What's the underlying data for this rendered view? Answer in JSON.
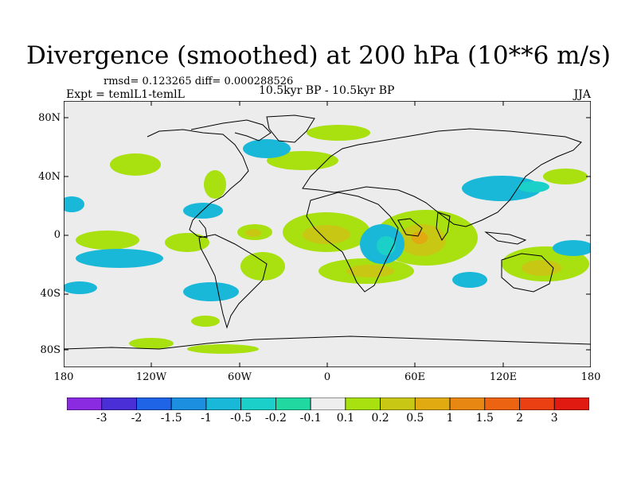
{
  "title": "Divergence (smoothed) at 200 hPa (10**6 m/s)",
  "stats": "rmsd= 0.123265 diff= 0.000288526",
  "experiment": "Expt = temlL1-temlL",
  "period": "10.5kyr BP - 10.5kyr BP",
  "season": "JJA",
  "y_axis_labels": [
    "80N",
    "40N",
    "0",
    "40S",
    "80S"
  ],
  "x_axis_labels": [
    "180",
    "120W",
    "60W",
    "0",
    "60E",
    "120E",
    "180"
  ],
  "colorbar": {
    "labels": [
      "-3",
      "-2",
      "-1.5",
      "-1",
      "-0.5",
      "-0.2",
      "-0.1",
      "0.1",
      "0.2",
      "0.5",
      "1",
      "1.5",
      "2",
      "3"
    ],
    "colors": [
      "#8a2be2",
      "#4b2fd6",
      "#1f63e6",
      "#1c8fe0",
      "#19b8d9",
      "#1ad0c8",
      "#20d8a0",
      "#eeeeee",
      "#a8e010",
      "#c8c814",
      "#e0aa10",
      "#e88812",
      "#ec6412",
      "#ea4012",
      "#e01a10"
    ]
  },
  "map_colors": {
    "ocean": "#ececec",
    "coast": "#000000"
  }
}
